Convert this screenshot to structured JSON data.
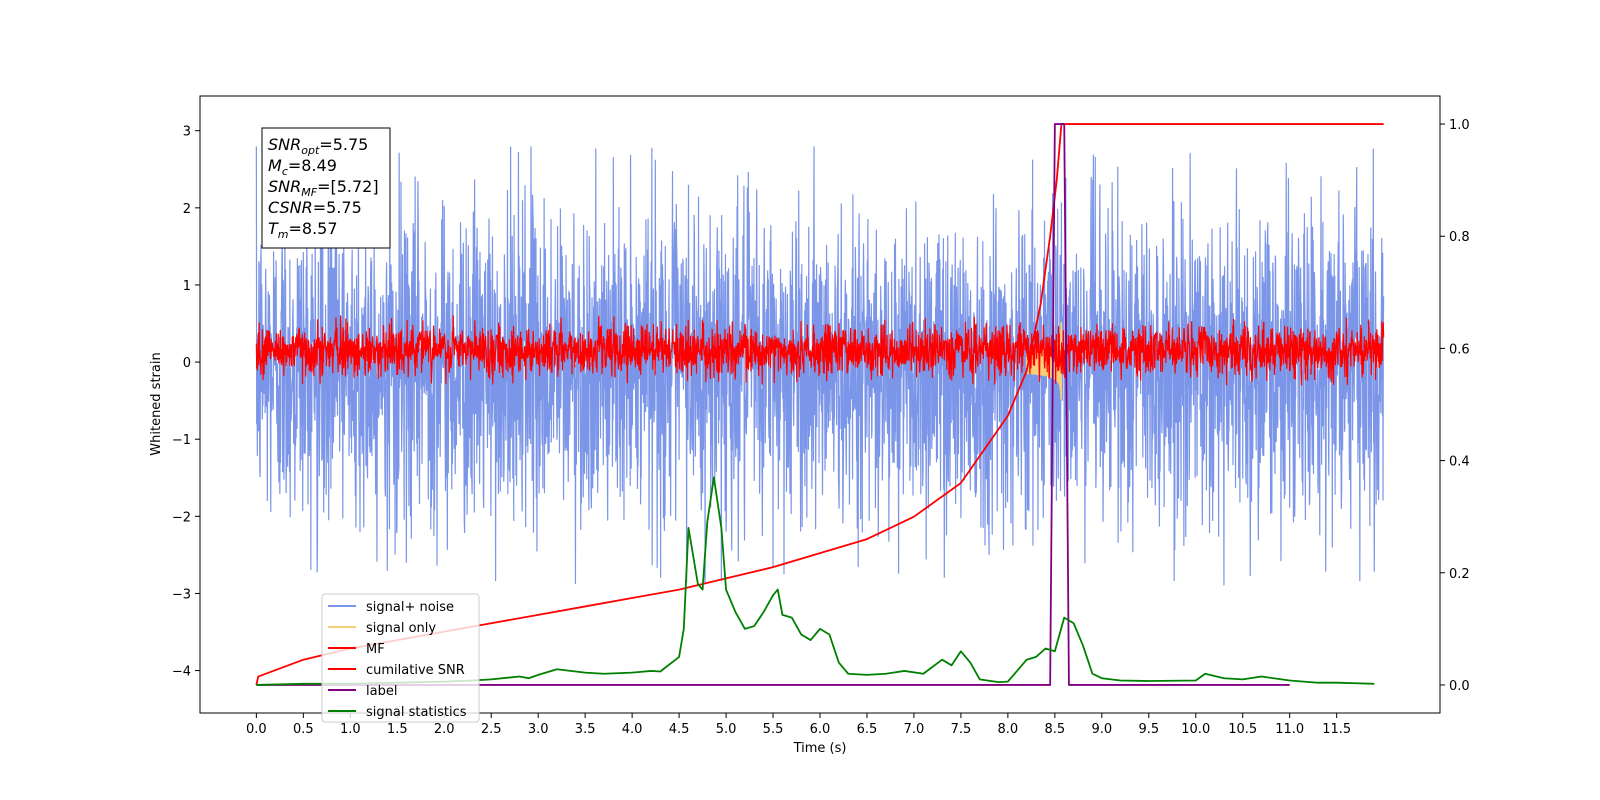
{
  "chart_data": {
    "type": "line",
    "xlabel": "Time (s)",
    "ylabel": "Whitened strain",
    "xlim": [
      -0.6,
      12.6
    ],
    "ylim": [
      -4.55,
      3.45
    ],
    "ylim_right": [
      -0.05,
      1.05
    ],
    "x_ticks": [
      "0.0",
      "0.5",
      "1.0",
      "1.5",
      "2.0",
      "2.5",
      "3.0",
      "3.5",
      "4.0",
      "4.5",
      "5.0",
      "5.5",
      "6.0",
      "6.5",
      "7.0",
      "7.5",
      "8.0",
      "8.5",
      "9.0",
      "9.5",
      "10.0",
      "10.5",
      "11.0",
      "11.5"
    ],
    "y_ticks": [
      "3",
      "2",
      "1",
      "0",
      "−1",
      "−2",
      "−3",
      "−4"
    ],
    "y_ticks_right": [
      "1.0",
      "0.8",
      "0.6",
      "0.4",
      "0.2",
      "0.0"
    ],
    "grid": false,
    "legend_position": "lower-left",
    "annotation": {
      "lines": [
        {
          "name": "SNR",
          "sub": "opt",
          "value": "=5.75"
        },
        {
          "name": "M",
          "sub": "c",
          "value": "=8.49"
        },
        {
          "name": "SNR",
          "sub": "MF",
          "value": "=[5.72]"
        },
        {
          "name": "CSNR",
          "sub": "",
          "value": "=5.75"
        },
        {
          "name": "T",
          "sub": "m",
          "value": "=8.57"
        }
      ]
    },
    "series": [
      {
        "name": "signal+ noise",
        "color": "#7b96e8",
        "axis": "left",
        "kind": "noise",
        "x_range": [
          0,
          12
        ],
        "approx_range": [
          -2.9,
          2.8
        ]
      },
      {
        "name": "signal only",
        "color": "#f6cf7a",
        "axis": "left",
        "kind": "chirp",
        "x_range": [
          8.2,
          8.57
        ],
        "approx_range": [
          -0.6,
          0.6
        ]
      },
      {
        "name": "MF",
        "color": "#ff0000",
        "axis": "left",
        "kind": "noise",
        "x_range": [
          0,
          12
        ],
        "approx_range": [
          -0.3,
          0.6
        ]
      },
      {
        "name": "cumilative SNR",
        "color": "#ff0000",
        "axis": "right",
        "x": [
          0.0,
          0.02,
          0.5,
          1.0,
          1.5,
          2.0,
          2.5,
          3.0,
          3.5,
          4.0,
          4.5,
          5.0,
          5.5,
          6.0,
          6.5,
          7.0,
          7.5,
          8.0,
          8.2,
          8.35,
          8.45,
          8.52,
          8.57,
          8.6,
          9.0,
          10.0,
          11.0,
          12.0
        ],
        "y": [
          0.0,
          0.015,
          0.045,
          0.065,
          0.08,
          0.095,
          0.11,
          0.125,
          0.14,
          0.155,
          0.17,
          0.19,
          0.21,
          0.235,
          0.26,
          0.3,
          0.36,
          0.48,
          0.56,
          0.68,
          0.8,
          0.9,
          1.0,
          1.0,
          1.0,
          1.0,
          1.0,
          1.0
        ]
      },
      {
        "name": "label",
        "color": "#800080",
        "axis": "right",
        "x": [
          0.0,
          8.45,
          8.5,
          8.6,
          8.65,
          11.0
        ],
        "y": [
          0.0,
          0.0,
          1.0,
          1.0,
          0.0,
          0.0
        ]
      },
      {
        "name": "signal statistics",
        "color": "#008000",
        "axis": "right",
        "x": [
          0.0,
          0.5,
          1.0,
          1.5,
          2.0,
          2.3,
          2.5,
          2.8,
          2.9,
          3.0,
          3.2,
          3.5,
          3.7,
          4.0,
          4.2,
          4.3,
          4.5,
          4.55,
          4.6,
          4.7,
          4.75,
          4.8,
          4.87,
          4.95,
          5.0,
          5.1,
          5.2,
          5.3,
          5.4,
          5.5,
          5.55,
          5.6,
          5.7,
          5.8,
          5.9,
          6.0,
          6.1,
          6.2,
          6.3,
          6.5,
          6.7,
          6.9,
          7.1,
          7.3,
          7.4,
          7.5,
          7.6,
          7.7,
          7.9,
          8.0,
          8.2,
          8.3,
          8.4,
          8.5,
          8.6,
          8.7,
          8.8,
          8.9,
          9.0,
          9.2,
          9.5,
          10.0,
          10.1,
          10.3,
          10.5,
          10.7,
          11.0,
          11.3,
          11.5,
          11.7,
          11.9
        ],
        "y": [
          0.0,
          0.002,
          0.002,
          0.004,
          0.006,
          0.008,
          0.01,
          0.015,
          0.012,
          0.018,
          0.028,
          0.022,
          0.02,
          0.022,
          0.025,
          0.024,
          0.05,
          0.1,
          0.28,
          0.18,
          0.17,
          0.29,
          0.37,
          0.28,
          0.17,
          0.13,
          0.1,
          0.105,
          0.13,
          0.16,
          0.17,
          0.125,
          0.12,
          0.09,
          0.08,
          0.1,
          0.09,
          0.04,
          0.02,
          0.018,
          0.02,
          0.025,
          0.02,
          0.045,
          0.035,
          0.06,
          0.04,
          0.01,
          0.005,
          0.006,
          0.045,
          0.05,
          0.065,
          0.06,
          0.12,
          0.11,
          0.07,
          0.02,
          0.012,
          0.008,
          0.007,
          0.008,
          0.02,
          0.012,
          0.01,
          0.015,
          0.008,
          0.004,
          0.004,
          0.003,
          0.002
        ]
      }
    ]
  }
}
